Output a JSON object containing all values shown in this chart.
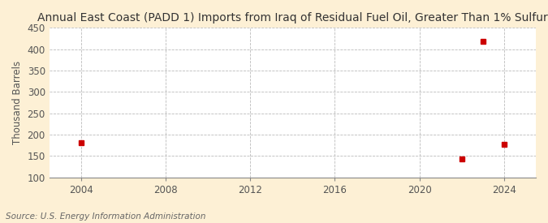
{
  "title": "Annual East Coast (PADD 1) Imports from Iraq of Residual Fuel Oil, Greater Than 1% Sulfur",
  "ylabel": "Thousand Barrels",
  "source": "Source: U.S. Energy Information Administration",
  "background_color": "#fdf0d5",
  "plot_background": "#ffffff",
  "data_points": [
    {
      "year": 2004,
      "value": 182
    },
    {
      "year": 2022,
      "value": 143
    },
    {
      "year": 2023,
      "value": 419
    },
    {
      "year": 2024,
      "value": 177
    }
  ],
  "marker_color": "#cc0000",
  "marker_size": 4,
  "xlim": [
    2002.5,
    2025.5
  ],
  "ylim": [
    100,
    450
  ],
  "xticks": [
    2004,
    2008,
    2012,
    2016,
    2020,
    2024
  ],
  "yticks": [
    100,
    150,
    200,
    250,
    300,
    350,
    400,
    450
  ],
  "grid_color": "#bbbbbb",
  "title_fontsize": 10,
  "axis_fontsize": 8.5,
  "source_fontsize": 7.5
}
